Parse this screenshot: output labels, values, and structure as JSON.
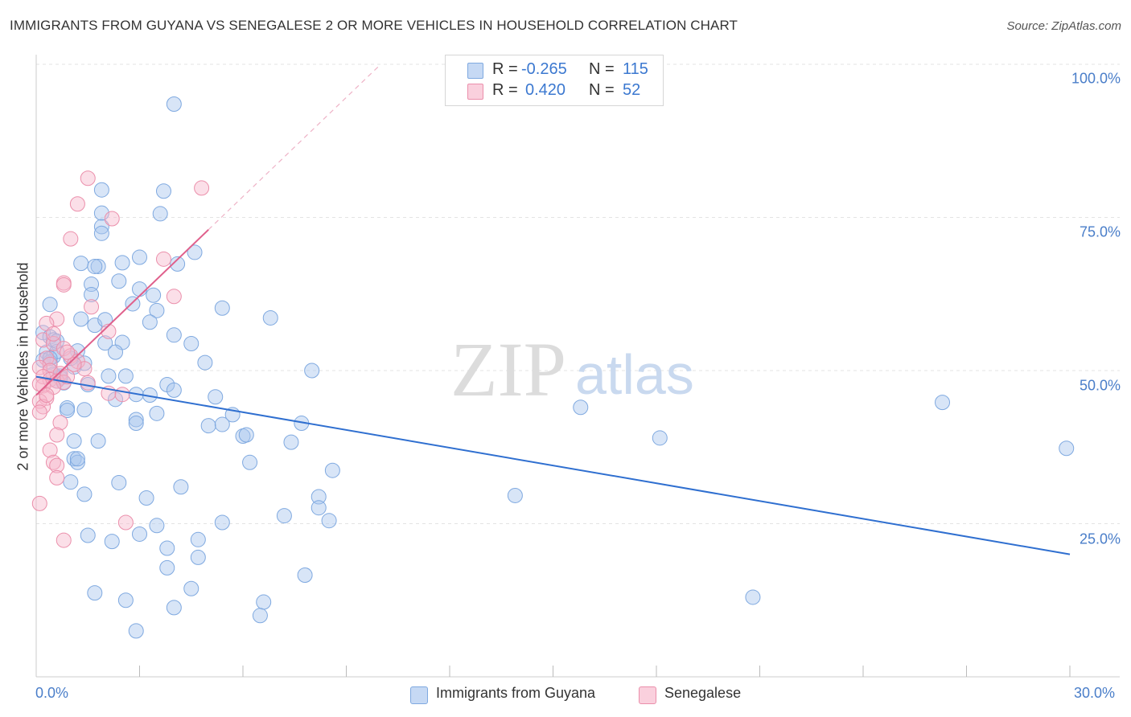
{
  "title": "IMMIGRANTS FROM GUYANA VS SENEGALESE 2 OR MORE VEHICLES IN HOUSEHOLD CORRELATION CHART",
  "source": "Source: ZipAtlas.com",
  "watermark": {
    "zip": "ZIP",
    "atlas": "atlas"
  },
  "legend": {
    "rows": [
      {
        "r_label": "R =",
        "r_value": "-0.265",
        "n_label": "N =",
        "n_value": "115",
        "color": "#a9c6ee"
      },
      {
        "r_label": "R =",
        "r_value": "0.420",
        "n_label": "N =",
        "n_value": "52",
        "color": "#f7b8cb"
      }
    ]
  },
  "bottom_legend": [
    {
      "label": "Immigrants from Guyana",
      "color": "#a9c6ee"
    },
    {
      "label": "Senegalese",
      "color": "#f7b8cb"
    }
  ],
  "chart_data": {
    "type": "scatter",
    "title": "IMMIGRANTS FROM GUYANA VS SENEGALESE 2 OR MORE VEHICLES IN HOUSEHOLD CORRELATION CHART",
    "xlabel": "",
    "ylabel": "2 or more Vehicles in Household",
    "xlim": [
      0,
      30
    ],
    "ylim": [
      0,
      100
    ],
    "x_tick_labels": [
      "0.0%",
      "30.0%"
    ],
    "y_ticks": [
      25,
      50,
      75,
      100
    ],
    "y_tick_labels": [
      "25.0%",
      "50.0%",
      "75.0%",
      "100.0%"
    ],
    "grid": true,
    "series": [
      {
        "name": "Immigrants from Guyana",
        "color": "#a9c6ee",
        "stroke": "#7fa9e0",
        "trend": {
          "x0": 0,
          "y0": 49.0,
          "x1": 30,
          "y1": 20.0,
          "color": "#2f6fd0"
        },
        "points": [
          [
            4.0,
            93.5
          ],
          [
            1.9,
            79.5
          ],
          [
            3.7,
            79.3
          ],
          [
            1.9,
            75.7
          ],
          [
            3.6,
            75.6
          ],
          [
            1.9,
            73.5
          ],
          [
            1.9,
            72.4
          ],
          [
            1.3,
            67.5
          ],
          [
            1.8,
            67.0
          ],
          [
            1.7,
            67.0
          ],
          [
            2.5,
            67.6
          ],
          [
            3.0,
            68.5
          ],
          [
            4.1,
            67.4
          ],
          [
            4.6,
            69.3
          ],
          [
            1.6,
            64.1
          ],
          [
            2.4,
            64.6
          ],
          [
            1.6,
            62.4
          ],
          [
            3.0,
            63.3
          ],
          [
            3.4,
            62.3
          ],
          [
            0.4,
            60.8
          ],
          [
            2.8,
            60.9
          ],
          [
            3.5,
            59.8
          ],
          [
            5.4,
            60.2
          ],
          [
            6.8,
            58.6
          ],
          [
            1.3,
            58.4
          ],
          [
            1.7,
            57.4
          ],
          [
            2.0,
            58.3
          ],
          [
            3.3,
            57.9
          ],
          [
            4.0,
            55.8
          ],
          [
            4.5,
            54.4
          ],
          [
            0.2,
            56.2
          ],
          [
            0.4,
            55.5
          ],
          [
            0.5,
            55.0
          ],
          [
            2.0,
            54.5
          ],
          [
            2.5,
            54.6
          ],
          [
            0.3,
            53.0
          ],
          [
            0.5,
            52.3
          ],
          [
            0.6,
            53.1
          ],
          [
            1.2,
            53.2
          ],
          [
            2.3,
            53.0
          ],
          [
            0.2,
            51.7
          ],
          [
            0.4,
            51.4
          ],
          [
            1.4,
            51.2
          ],
          [
            1.1,
            50.6
          ],
          [
            4.9,
            51.3
          ],
          [
            8.0,
            50.0
          ],
          [
            0.5,
            49.4
          ],
          [
            0.7,
            49.1
          ],
          [
            0.6,
            48.3
          ],
          [
            1.5,
            47.7
          ],
          [
            2.1,
            49.1
          ],
          [
            0.8,
            48.0
          ],
          [
            3.8,
            47.7
          ],
          [
            4.0,
            46.8
          ],
          [
            2.9,
            46.1
          ],
          [
            2.3,
            45.3
          ],
          [
            5.2,
            45.7
          ],
          [
            0.9,
            43.9
          ],
          [
            0.9,
            43.5
          ],
          [
            1.4,
            43.6
          ],
          [
            3.5,
            43.0
          ],
          [
            5.7,
            42.8
          ],
          [
            2.9,
            42.0
          ],
          [
            2.9,
            41.4
          ],
          [
            5.0,
            41.0
          ],
          [
            5.4,
            41.2
          ],
          [
            7.7,
            41.4
          ],
          [
            6.0,
            39.3
          ],
          [
            6.1,
            39.5
          ],
          [
            1.1,
            38.5
          ],
          [
            1.8,
            38.5
          ],
          [
            7.4,
            38.3
          ],
          [
            1.1,
            35.6
          ],
          [
            1.2,
            35.0
          ],
          [
            1.2,
            35.6
          ],
          [
            6.2,
            35.0
          ],
          [
            8.6,
            33.7
          ],
          [
            1.0,
            31.8
          ],
          [
            2.4,
            31.7
          ],
          [
            4.2,
            31.0
          ],
          [
            1.4,
            29.8
          ],
          [
            3.2,
            29.2
          ],
          [
            8.2,
            29.4
          ],
          [
            8.2,
            27.6
          ],
          [
            7.2,
            26.3
          ],
          [
            8.5,
            25.5
          ],
          [
            5.4,
            25.2
          ],
          [
            3.5,
            24.7
          ],
          [
            1.5,
            23.1
          ],
          [
            3.0,
            23.3
          ],
          [
            2.2,
            22.1
          ],
          [
            4.7,
            22.4
          ],
          [
            3.8,
            21.0
          ],
          [
            4.7,
            19.5
          ],
          [
            7.8,
            16.6
          ],
          [
            3.8,
            17.8
          ],
          [
            1.7,
            13.7
          ],
          [
            4.5,
            14.4
          ],
          [
            2.6,
            12.5
          ],
          [
            6.6,
            12.2
          ],
          [
            4.0,
            11.3
          ],
          [
            6.5,
            10.0
          ],
          [
            2.9,
            7.5
          ],
          [
            15.8,
            44.0
          ],
          [
            18.1,
            39.0
          ],
          [
            26.3,
            44.8
          ],
          [
            29.9,
            37.3
          ],
          [
            13.9,
            29.6
          ],
          [
            20.8,
            13.0
          ],
          [
            0.6,
            54.8
          ],
          [
            0.4,
            52.0
          ],
          [
            1.0,
            52.0
          ],
          [
            0.7,
            48.8
          ],
          [
            2.6,
            49.1
          ],
          [
            3.3,
            46.0
          ]
        ]
      },
      {
        "name": "Senegalese",
        "color": "#f7b8cb",
        "stroke": "#eb8fab",
        "trend": {
          "x0": 0,
          "y0": 46.0,
          "x1": 5.0,
          "y1": 73.0,
          "dash_to_x": 10.0,
          "dash_to_y": 100.0,
          "color": "#e0608c"
        },
        "points": [
          [
            1.5,
            81.4
          ],
          [
            4.8,
            79.8
          ],
          [
            1.2,
            77.2
          ],
          [
            2.2,
            74.8
          ],
          [
            1.0,
            71.5
          ],
          [
            3.7,
            68.2
          ],
          [
            0.8,
            64.3
          ],
          [
            0.8,
            64.0
          ],
          [
            4.0,
            62.1
          ],
          [
            1.6,
            60.4
          ],
          [
            0.6,
            58.4
          ],
          [
            0.3,
            57.7
          ],
          [
            2.1,
            56.4
          ],
          [
            0.2,
            55.0
          ],
          [
            0.5,
            54.4
          ],
          [
            0.8,
            53.6
          ],
          [
            1.0,
            52.4
          ],
          [
            0.3,
            52.0
          ],
          [
            1.2,
            51.5
          ],
          [
            0.4,
            51.0
          ],
          [
            0.1,
            50.5
          ],
          [
            0.4,
            50.0
          ],
          [
            0.7,
            49.5
          ],
          [
            1.4,
            50.3
          ],
          [
            0.2,
            49.0
          ],
          [
            0.4,
            48.5
          ],
          [
            0.6,
            48.3
          ],
          [
            0.8,
            48.1
          ],
          [
            0.2,
            47.5
          ],
          [
            0.5,
            47.3
          ],
          [
            0.1,
            47.8
          ],
          [
            1.5,
            48.0
          ],
          [
            2.1,
            46.3
          ],
          [
            2.5,
            46.1
          ],
          [
            0.3,
            45.5
          ],
          [
            0.1,
            45.0
          ],
          [
            0.2,
            44.1
          ],
          [
            0.1,
            43.2
          ],
          [
            0.7,
            41.5
          ],
          [
            0.6,
            39.5
          ],
          [
            0.4,
            37.0
          ],
          [
            0.5,
            35.0
          ],
          [
            0.6,
            34.5
          ],
          [
            0.6,
            32.5
          ],
          [
            0.1,
            28.3
          ],
          [
            2.6,
            25.2
          ],
          [
            0.8,
            22.3
          ],
          [
            0.9,
            49.0
          ],
          [
            1.1,
            51.0
          ],
          [
            0.9,
            53.0
          ],
          [
            0.5,
            56.0
          ],
          [
            0.3,
            46.0
          ]
        ]
      }
    ]
  }
}
